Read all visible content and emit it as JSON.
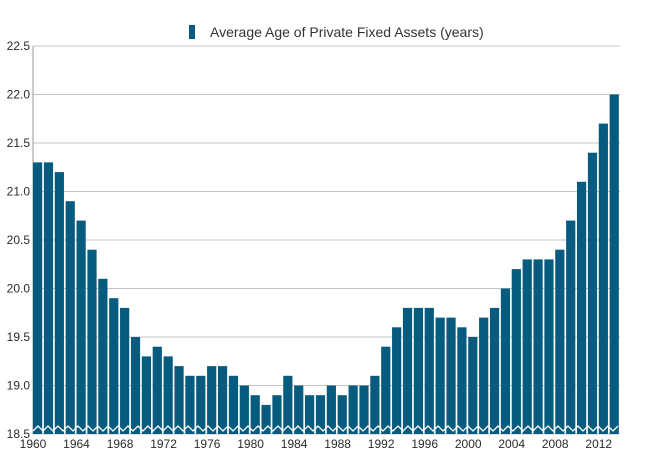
{
  "chart_data": {
    "type": "bar",
    "legend": "Average Age of Private Fixed Assets (years)",
    "legend_position": "top",
    "x": [
      1960,
      1961,
      1962,
      1963,
      1964,
      1965,
      1966,
      1967,
      1968,
      1969,
      1970,
      1971,
      1972,
      1973,
      1974,
      1975,
      1976,
      1977,
      1978,
      1979,
      1980,
      1981,
      1982,
      1983,
      1984,
      1985,
      1986,
      1987,
      1988,
      1989,
      1990,
      1991,
      1992,
      1993,
      1994,
      1995,
      1996,
      1997,
      1998,
      1999,
      2000,
      2001,
      2002,
      2003,
      2004,
      2005,
      2006,
      2007,
      2008,
      2009,
      2010,
      2011,
      2012,
      2013
    ],
    "values": [
      21.3,
      21.3,
      21.2,
      20.9,
      20.7,
      20.4,
      20.1,
      19.9,
      19.8,
      19.5,
      19.3,
      19.4,
      19.3,
      19.2,
      19.1,
      19.1,
      19.2,
      19.2,
      19.1,
      19.0,
      18.9,
      18.8,
      18.9,
      19.1,
      19.0,
      18.9,
      18.9,
      19.0,
      18.9,
      19.0,
      19.0,
      19.1,
      19.4,
      19.6,
      19.8,
      19.8,
      19.8,
      19.7,
      19.7,
      19.6,
      19.5,
      19.7,
      19.8,
      20.0,
      20.2,
      20.3,
      20.3,
      20.3,
      20.4,
      20.7,
      21.1,
      21.4,
      21.7,
      22.0
    ],
    "x_tick_labels": [
      "1960",
      "1964",
      "1968",
      "1972",
      "1976",
      "1980",
      "1984",
      "1988",
      "1992",
      "1996",
      "2000",
      "2004",
      "2008",
      "2012"
    ],
    "y_tick_labels": [
      "18.5",
      "19.0",
      "19.5",
      "20.0",
      "20.5",
      "21.0",
      "21.5",
      "22.0",
      "22.5"
    ],
    "ylim": [
      18.5,
      22.5
    ],
    "grid": true,
    "colors": {
      "bar": "#075b7e",
      "grid": "#c4c4c4",
      "text": "#2b2b2b"
    }
  }
}
